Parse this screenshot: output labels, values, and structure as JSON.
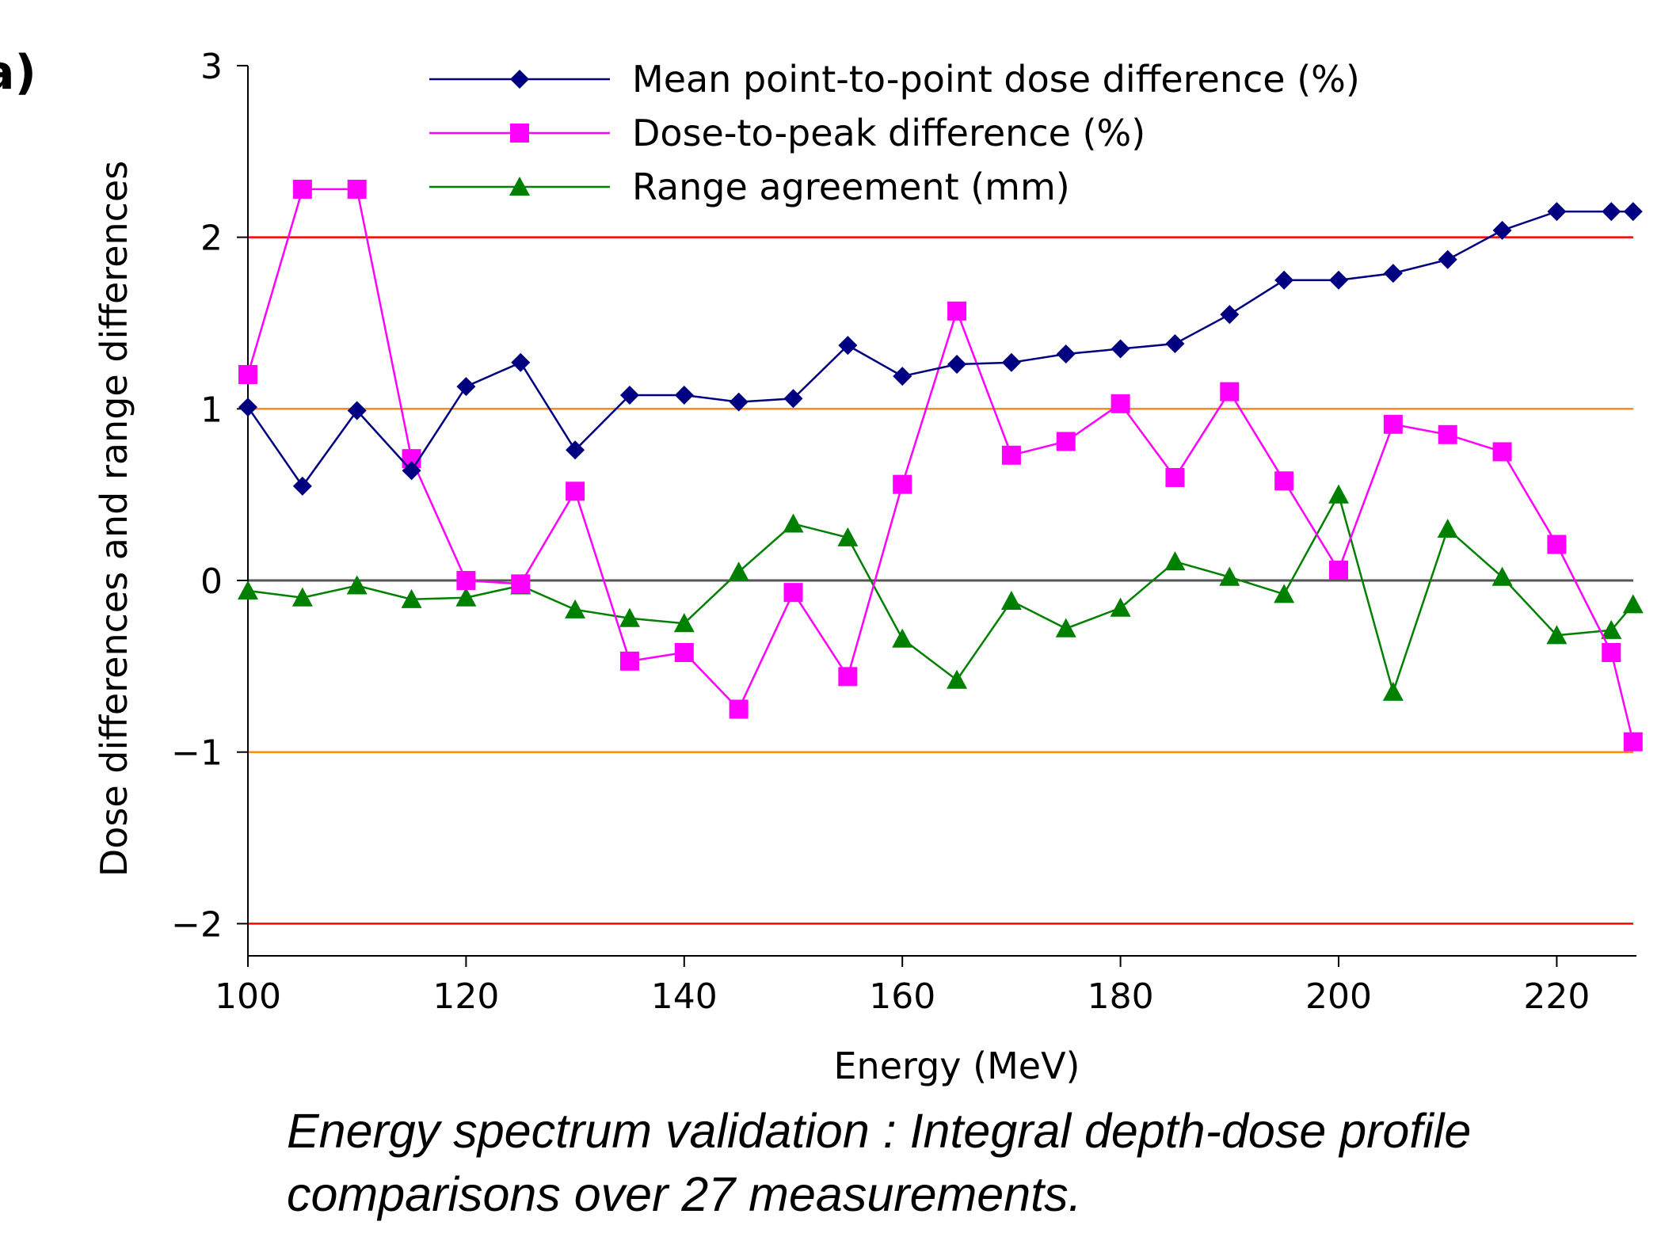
{
  "panel_label": "a)",
  "caption": {
    "line1": "Energy spectrum validation : Integral depth-dose profile",
    "line2": "comparisons over 27 measurements."
  },
  "chart_data": {
    "type": "line",
    "xlabel": "Energy (MeV)",
    "ylabel": "Dose differences and range differences",
    "xlim": [
      100,
      227
    ],
    "ylim": [
      -2.2,
      3
    ],
    "xticks": [
      100,
      120,
      140,
      160,
      180,
      200,
      220
    ],
    "yticks": [
      3,
      2,
      1,
      0,
      -1,
      -2
    ],
    "ytick_labels": [
      "3",
      "2",
      "1",
      "0",
      "−1",
      "−2"
    ],
    "grid": false,
    "legend_position": "top-center",
    "reference_lines": [
      {
        "y": 2,
        "color": "#ff0000"
      },
      {
        "y": 1,
        "color": "#ff8c1a"
      },
      {
        "y": 0,
        "color": "#555555"
      },
      {
        "y": -1,
        "color": "#ff8c1a"
      },
      {
        "y": -2,
        "color": "#ff0000"
      }
    ],
    "x": [
      100,
      105,
      110,
      115,
      120,
      125,
      130,
      135,
      140,
      145,
      150,
      155,
      160,
      165,
      170,
      175,
      180,
      185,
      190,
      195,
      200,
      205,
      210,
      215,
      220,
      225,
      227
    ],
    "series": [
      {
        "name": "Mean point-to-point dose difference (%)",
        "color": "#000080",
        "marker": "diamond",
        "values": [
          1.01,
          0.55,
          0.99,
          0.64,
          1.13,
          1.27,
          0.76,
          1.08,
          1.08,
          1.04,
          1.06,
          1.37,
          1.19,
          1.26,
          1.27,
          1.32,
          1.35,
          1.38,
          1.55,
          1.75,
          1.75,
          1.79,
          1.87,
          2.04,
          2.15,
          2.15,
          2.15
        ]
      },
      {
        "name": "Dose-to-peak difference (%)",
        "color": "#ff00ff",
        "marker": "square",
        "values": [
          1.2,
          2.28,
          2.28,
          0.71,
          0.0,
          -0.02,
          0.52,
          -0.47,
          -0.42,
          -0.75,
          -0.07,
          -0.56,
          0.56,
          1.57,
          0.73,
          0.81,
          1.03,
          0.6,
          1.1,
          0.58,
          0.06,
          0.91,
          0.85,
          0.75,
          0.21,
          -0.42,
          -0.94
        ]
      },
      {
        "name": "Range agreement (mm)",
        "color": "#008000",
        "marker": "triangle",
        "values": [
          -0.06,
          -0.1,
          -0.03,
          -0.11,
          -0.1,
          -0.03,
          -0.17,
          -0.22,
          -0.25,
          0.05,
          0.33,
          0.25,
          -0.34,
          -0.58,
          -0.12,
          -0.28,
          -0.16,
          0.11,
          0.02,
          -0.08,
          0.5,
          -0.65,
          0.3,
          0.02,
          -0.32,
          -0.29,
          -0.14
        ]
      }
    ]
  }
}
